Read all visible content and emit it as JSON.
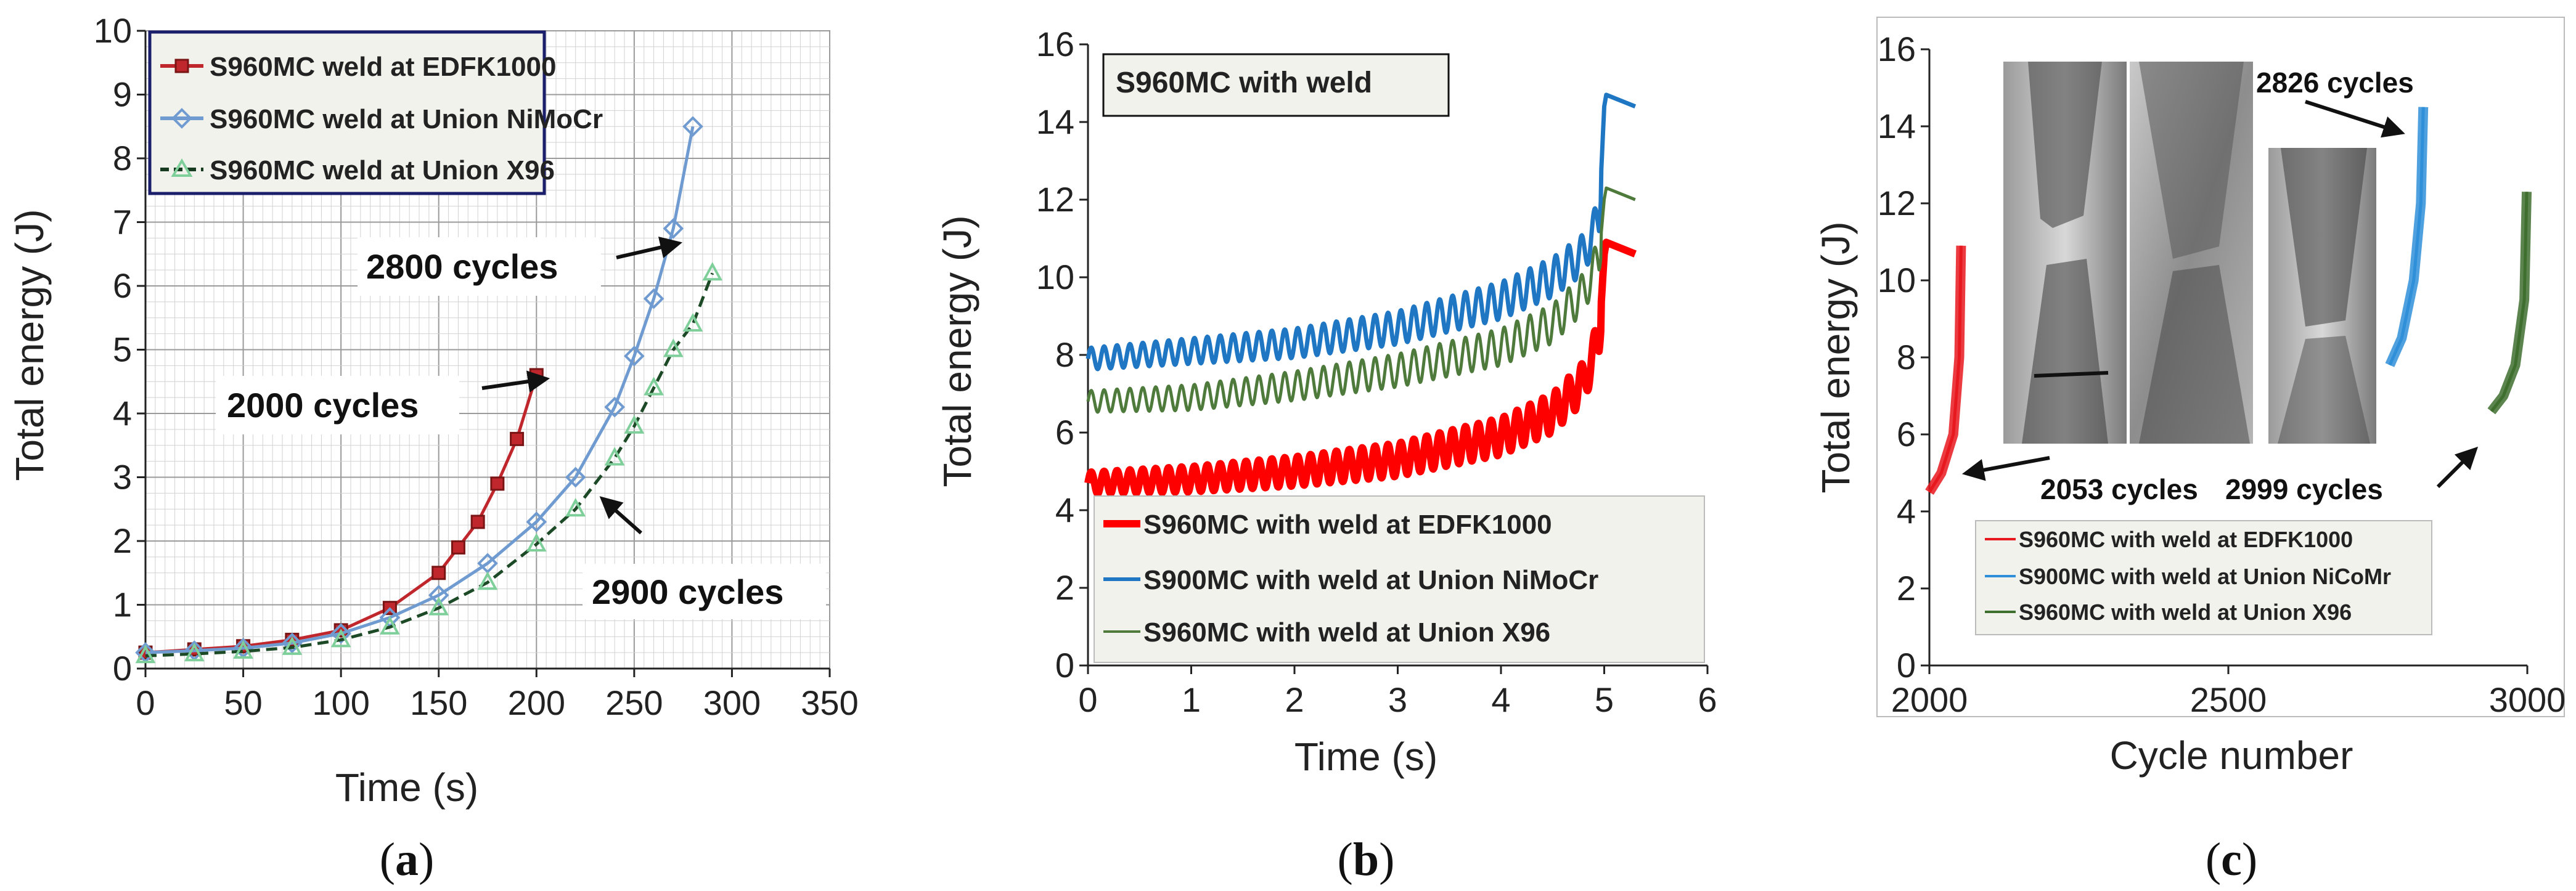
{
  "chart_data": [
    {
      "panel": "(a)",
      "caption_open": "(",
      "caption_letter": "a",
      "caption_close": ")",
      "type": "line",
      "xlabel": "Time (s)",
      "ylabel": "Total energy (J)",
      "xlim": [
        0,
        350
      ],
      "ylim": [
        0,
        10
      ],
      "xticks": [
        0,
        50,
        100,
        150,
        200,
        250,
        300,
        350
      ],
      "yticks": [
        0,
        1,
        2,
        3,
        4,
        5,
        6,
        7,
        8,
        9,
        10
      ],
      "grid": true,
      "legend_position": "top-left",
      "series": [
        {
          "name": "S960MC weld at EDFK1000",
          "color": "#c0272d",
          "marker": "square",
          "x": [
            0,
            25,
            50,
            75,
            100,
            125,
            150,
            160,
            170,
            180,
            190,
            200
          ],
          "y": [
            0.25,
            0.3,
            0.35,
            0.45,
            0.6,
            0.95,
            1.5,
            1.9,
            2.3,
            2.9,
            3.6,
            4.6
          ]
        },
        {
          "name": "S960MC weld at Union NiMoCr",
          "color": "#6f9bd1",
          "marker": "diamond",
          "x": [
            0,
            25,
            50,
            75,
            100,
            125,
            150,
            175,
            200,
            220,
            240,
            250,
            260,
            270,
            280
          ],
          "y": [
            0.25,
            0.28,
            0.32,
            0.4,
            0.55,
            0.8,
            1.15,
            1.65,
            2.3,
            3.0,
            4.1,
            4.9,
            5.8,
            6.9,
            8.5
          ]
        },
        {
          "name": "S960MC weld at Union X96",
          "color": "#7fcf9b",
          "marker": "triangle",
          "x": [
            0,
            25,
            50,
            75,
            100,
            125,
            150,
            175,
            200,
            220,
            240,
            250,
            260,
            270,
            280,
            290
          ],
          "y": [
            0.2,
            0.23,
            0.27,
            0.33,
            0.45,
            0.65,
            0.95,
            1.35,
            1.95,
            2.5,
            3.3,
            3.8,
            4.4,
            5.0,
            5.4,
            6.2
          ]
        }
      ],
      "annotations": [
        {
          "text": "2000 cycles",
          "x": 200
        },
        {
          "text": "2800 cycles",
          "x": 275
        },
        {
          "text": "2900 cycles",
          "x": 235
        }
      ]
    },
    {
      "panel": "(b)",
      "caption_open": "(",
      "caption_letter": "b",
      "caption_close": ")",
      "type": "line",
      "title": "S960MC with weld",
      "xlabel": "Time (s)",
      "ylabel": "Total energy (J)",
      "xlim": [
        0,
        6
      ],
      "ylim": [
        0,
        16
      ],
      "xticks": [
        0,
        1,
        2,
        3,
        4,
        5,
        6
      ],
      "yticks": [
        0,
        2,
        4,
        6,
        8,
        10,
        12,
        14,
        16
      ],
      "grid": false,
      "legend_position": "bottom-right",
      "series": [
        {
          "name": "S960MC with weld at EDFK1000",
          "color": "#ff0000",
          "x": [
            0,
            1,
            2,
            3,
            4,
            4.5,
            4.8,
            4.95,
            5.0,
            5.3
          ],
          "y": [
            4.7,
            4.8,
            5.0,
            5.3,
            5.9,
            6.5,
            7.3,
            8.4,
            10.6,
            10.6
          ]
        },
        {
          "name": "S900MC with weld at Union NiMoCr",
          "color": "#1f77c4",
          "x": [
            0,
            1,
            2,
            3,
            4,
            4.5,
            4.8,
            4.95,
            5.0,
            5.3
          ],
          "y": [
            7.9,
            8.1,
            8.3,
            8.7,
            9.4,
            10.0,
            10.6,
            11.5,
            14.4,
            14.4
          ]
        },
        {
          "name": "S960MC with weld at Union X96",
          "color": "#4e7a3c",
          "x": [
            0,
            1,
            2,
            3,
            4,
            4.5,
            4.8,
            4.95,
            5.0,
            5.3
          ],
          "y": [
            6.8,
            6.9,
            7.2,
            7.6,
            8.2,
            8.8,
            9.6,
            10.5,
            12.0,
            12.0
          ]
        }
      ]
    },
    {
      "panel": "(c)",
      "caption_open": "(",
      "caption_letter": "c",
      "caption_close": ")",
      "type": "line",
      "xlabel": "Cycle number",
      "ylabel": "Total energy (J)",
      "xlim": [
        2000,
        3000
      ],
      "ylim": [
        0,
        16
      ],
      "xticks": [
        2000,
        2500,
        3000
      ],
      "yticks": [
        0,
        2,
        4,
        6,
        8,
        10,
        12,
        14,
        16
      ],
      "grid": false,
      "legend_position": "bottom",
      "series": [
        {
          "name": "S960MC with weld at EDFK1000",
          "color": "#e8191e",
          "x": [
            2000,
            2020,
            2040,
            2050,
            2053
          ],
          "y": [
            4.5,
            5.0,
            6.0,
            8.0,
            10.9
          ]
        },
        {
          "name": "S900MC with weld at Union NiCoMr",
          "color": "#2f8fd9",
          "x": [
            2770,
            2790,
            2810,
            2822,
            2826
          ],
          "y": [
            7.8,
            8.5,
            10.0,
            12.0,
            14.5
          ]
        },
        {
          "name": "S960MC with weld at Union X96",
          "color": "#3f6f2f",
          "x": [
            2940,
            2960,
            2980,
            2995,
            2999
          ],
          "y": [
            6.6,
            7.0,
            7.8,
            9.5,
            12.3
          ]
        }
      ],
      "annotations": [
        {
          "text": "2053 cycles",
          "x": 2053
        },
        {
          "text": "2826 cycles",
          "x": 2826
        },
        {
          "text": "2999 cycles",
          "x": 2999
        }
      ]
    }
  ]
}
